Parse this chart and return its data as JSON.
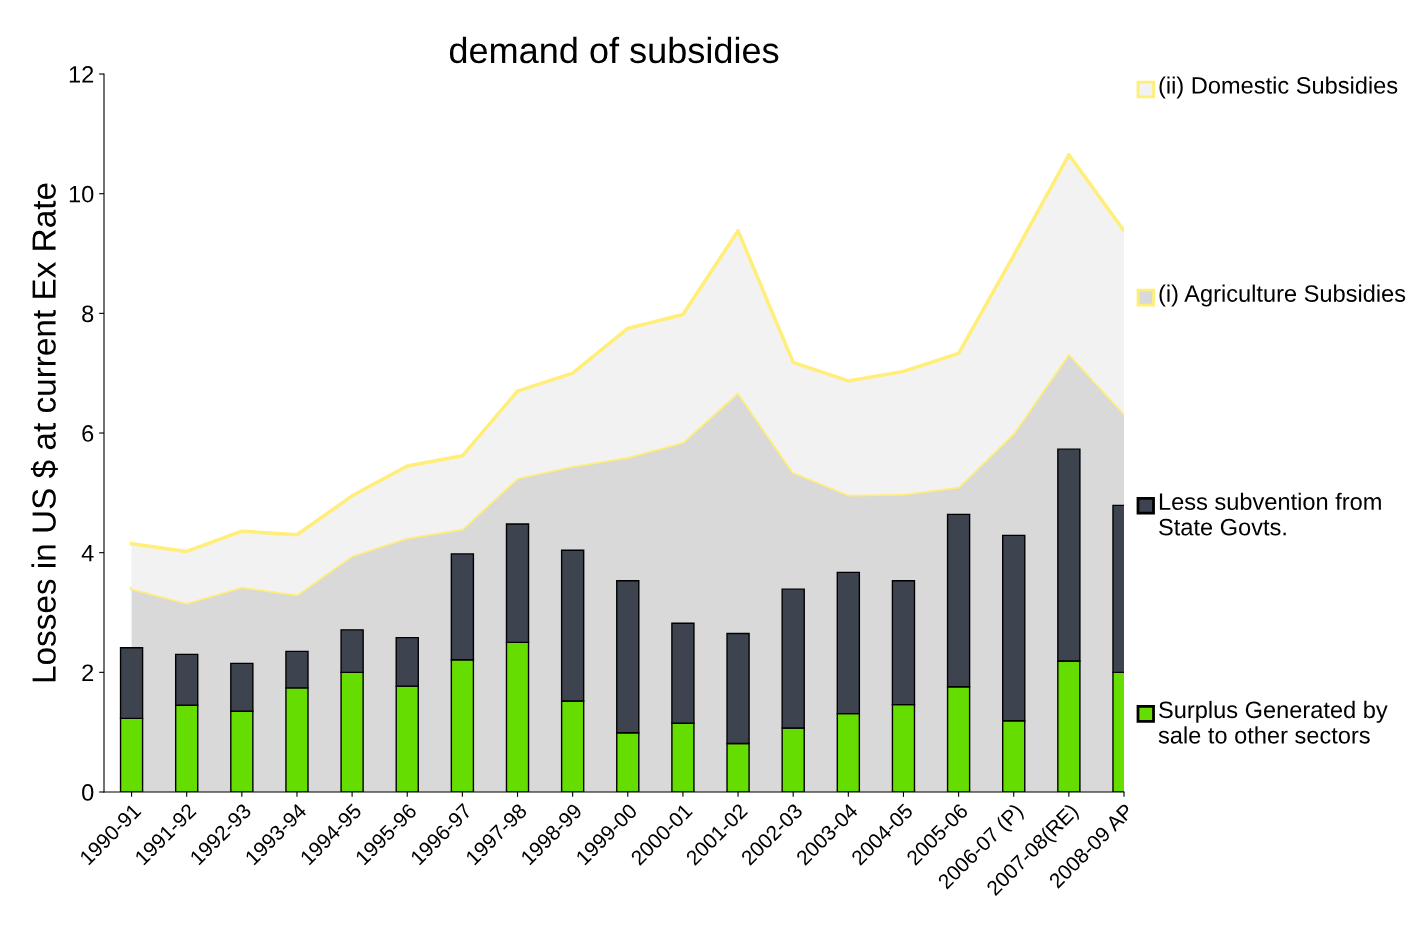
{
  "chart_data": [
    {
      "type": "area",
      "title": "demand of subsidies",
      "ylabel": "Losses in US $ at current Ex Rate",
      "categories": [
        "1990-91",
        "1991-92",
        "1992-93",
        "1993-94",
        "1994-95",
        "1995-96",
        "1996-97",
        "1997-98",
        "1998-99",
        "1999-00",
        "2000-01",
        "2001-02",
        "2002-03",
        "2003-04",
        "2004-05",
        "2005-06",
        "2006-07 (P)",
        "2007-08(RE)",
        "2008-09 AP"
      ],
      "stacked": true,
      "series": [
        {
          "name": "(i) Agriculture Subsidies",
          "color": "#d9d9d9",
          "values": [
            3.4,
            3.16,
            3.43,
            3.3,
            3.95,
            4.25,
            4.4,
            5.25,
            5.45,
            5.6,
            5.85,
            6.68,
            5.35,
            4.97,
            4.98,
            5.1,
            6.0,
            7.33,
            6.33
          ]
        },
        {
          "name": "(ii) Domestic Subsidies",
          "color": "#f2f2f2",
          "values": [
            0.75,
            0.86,
            0.93,
            1.0,
            1.0,
            1.2,
            1.22,
            1.45,
            1.55,
            2.15,
            2.13,
            2.7,
            1.83,
            1.9,
            2.05,
            2.23,
            2.97,
            3.32,
            3.05
          ]
        }
      ],
      "ylim": [
        0,
        12
      ],
      "yticks": [
        0,
        2,
        4,
        6,
        8,
        10,
        12
      ],
      "grid": false,
      "legend": "right"
    },
    {
      "type": "bar",
      "categories": [
        null,
        null,
        null,
        null,
        null,
        null,
        null,
        null,
        null,
        null,
        null,
        null,
        null,
        null,
        null,
        null,
        null,
        null,
        null
      ],
      "stacked": true,
      "series": [
        {
          "name": "Surplus Generated by sale to other sectors",
          "color": "#66dd00",
          "values": [
            1.23,
            1.45,
            1.35,
            1.74,
            2.0,
            1.77,
            2.21,
            2.5,
            1.52,
            0.99,
            1.15,
            0.81,
            1.07,
            1.31,
            1.46,
            1.76,
            1.19,
            2.19,
            2.0
          ]
        },
        {
          "name": "Less subvention from State Govts.",
          "color": "#3d4450",
          "values": [
            1.18,
            0.85,
            0.8,
            0.61,
            0.71,
            0.81,
            1.77,
            1.98,
            2.52,
            2.54,
            1.67,
            1.84,
            2.32,
            2.36,
            2.07,
            2.88,
            3.1,
            3.54,
            2.79
          ]
        }
      ],
      "ylim": [
        0,
        12
      ],
      "yticks": [
        0,
        2,
        4,
        6,
        8,
        10,
        12
      ],
      "tick_labels": false,
      "grid": false,
      "legend": "right"
    }
  ]
}
